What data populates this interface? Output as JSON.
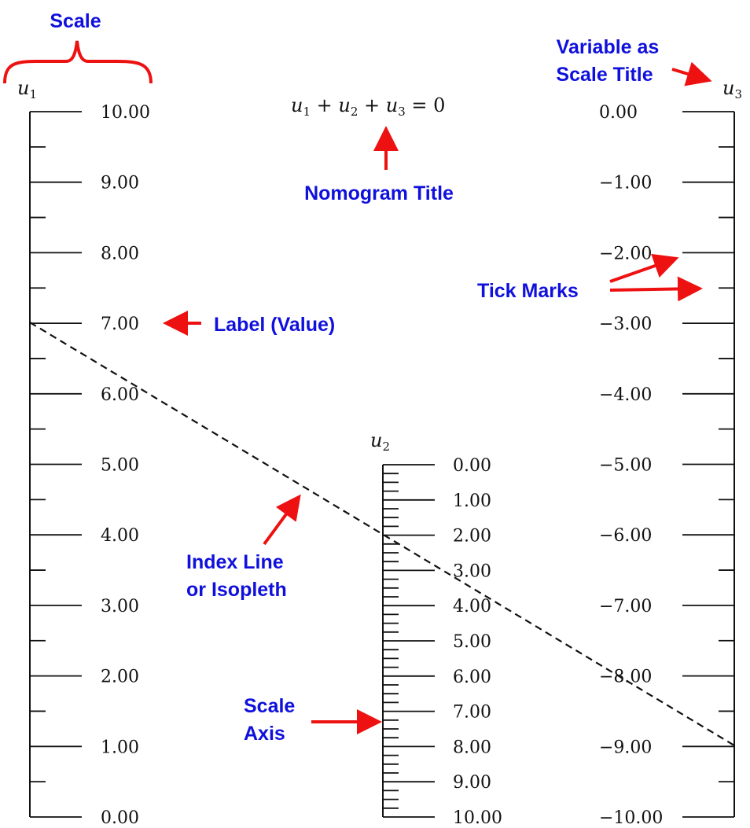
{
  "title": {
    "var1": "u",
    "sub1": "1",
    "var2": "u",
    "sub2": "2",
    "var3": "u",
    "sub3": "3",
    "op1": " + ",
    "op2": " + ",
    "op3": " = 0"
  },
  "scales": [
    {
      "variable": "u",
      "subscript": "1",
      "min": 0,
      "max": 10,
      "labels": [
        "10.00",
        "9.00",
        "8.00",
        "7.00",
        "6.00",
        "5.00",
        "4.00",
        "3.00",
        "2.00",
        "1.00",
        "0.00"
      ]
    },
    {
      "variable": "u",
      "subscript": "2",
      "min": 0,
      "max": 10,
      "labels": [
        "0.00",
        "1.00",
        "2.00",
        "3.00",
        "4.00",
        "5.00",
        "6.00",
        "7.00",
        "8.00",
        "9.00",
        "10.00"
      ]
    },
    {
      "variable": "u",
      "subscript": "3",
      "min": -10,
      "max": 0,
      "labels": [
        "0.00",
        "−1.00",
        "−2.00",
        "−3.00",
        "−4.00",
        "−5.00",
        "−6.00",
        "−7.00",
        "−8.00",
        "−9.00",
        "−10.00"
      ]
    }
  ],
  "isopleth": {
    "u1": 7,
    "u2": 2,
    "u3": -9
  },
  "annotations": {
    "scale": "Scale",
    "scale_title_line1": "Variable as",
    "scale_title_line2": "Scale Title",
    "nomogram_title": "Nomogram Title",
    "label_value": "Label (Value)",
    "tick_marks": "Tick Marks",
    "index_line_1": "Index Line",
    "index_line_2": "or Isopleth",
    "scale_axis_1": "Scale",
    "scale_axis_2": "Axis"
  },
  "colors": {
    "annotation_text": "#1010dd",
    "arrow": "#ee1111",
    "ink": "#111111"
  }
}
